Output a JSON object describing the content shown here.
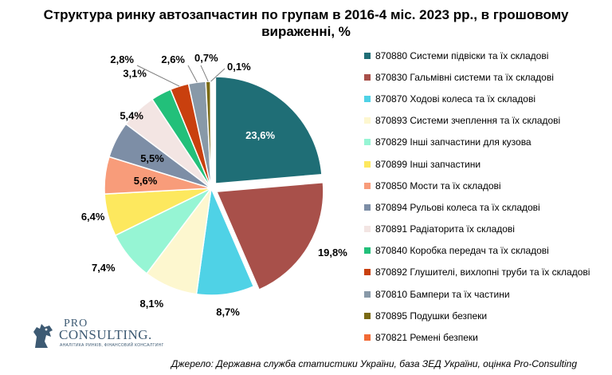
{
  "title": "Структура ринку автозапчастин по групам в 2016-4 міс. 2023 рр., в грошовому\nвираженні, %",
  "source": "Джерело: Державна служба статистики України, база ЗЕД України, оцінка Pro-Consulting",
  "logo": {
    "pro": "PRO",
    "consulting": "CONSULTING.",
    "tagline": "АНАЛІТИКА РИНКІВ, ФІНАНСОВИЙ КОНСАЛТИНГ"
  },
  "chart_data": {
    "type": "pie",
    "title": "Структура ринку автозапчастин по групам в 2016-4 міс. 2023 рр., в грошовому вираженні, %",
    "legend_position": "right",
    "categories": [
      "870880 Системи підвіски та їх складові",
      "870830 Гальмівні системи та їх складові",
      "870870 Ходові колеса та їх складові",
      "870893 Системи зчеплення та їх складові",
      "870829 Інші запчастини для кузова",
      "870899 Інші запчастини",
      "870850 Мости та їх складові",
      "870894 Рульові колеса та їх складові",
      "870891 Радіаторита їх складові",
      "870840 Коробка передач та їх складові",
      "870892 Глушителі, вихлопні труби та їх складові",
      "870810 Бампери та їх частини",
      "870895 Подушки безпеки",
      "870821 Ремені безпеки"
    ],
    "values": [
      23.6,
      19.8,
      8.7,
      8.1,
      7.4,
      6.4,
      5.6,
      5.5,
      5.4,
      3.1,
      2.8,
      2.6,
      0.7,
      0.1
    ],
    "labels": [
      "23,6%",
      "19,8%",
      "8,7%",
      "8,1%",
      "7,4%",
      "6,4%",
      "5,6%",
      "5,5%",
      "5,4%",
      "3,1%",
      "2,8%",
      "2,6%",
      "0,7%",
      "0,1%"
    ],
    "colors": [
      "#1f6e76",
      "#a8504a",
      "#4fd2e6",
      "#fdf7cf",
      "#96f5d4",
      "#fde85e",
      "#f89c7a",
      "#7d8ea6",
      "#f3e5e3",
      "#22c07a",
      "#c9400e",
      "#8899a8",
      "#7a6a14",
      "#f26a35"
    ]
  }
}
